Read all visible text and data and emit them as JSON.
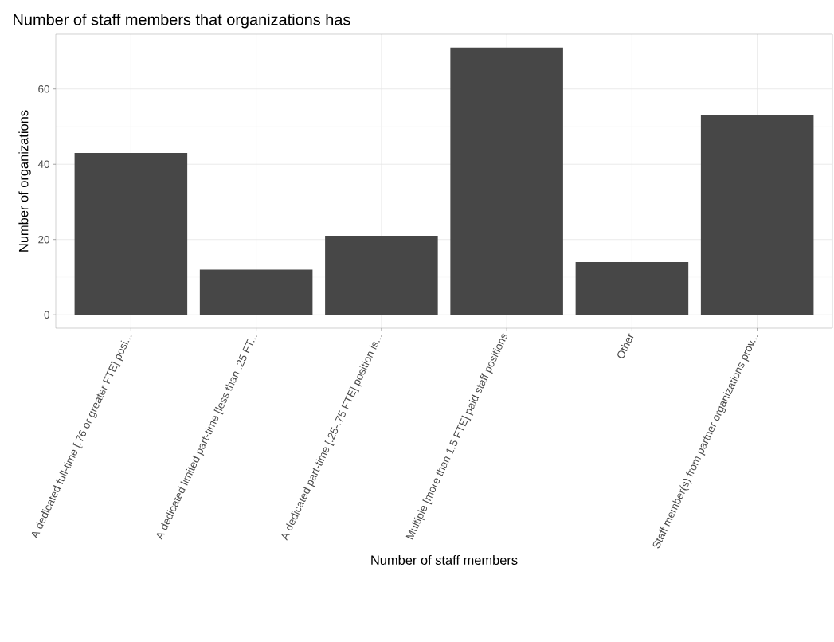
{
  "chart_data": {
    "type": "bar",
    "title": "Number of staff members that organizations has",
    "xlabel": "Number of staff members",
    "ylabel": "Number of organizations",
    "categories": [
      "A dedicated full-time [.76 or greater FTE] posi...",
      "A dedicated limited part-time [less than .25 FT...",
      "A dedicated part-time [.25-.75 FTE] position is...",
      "Multiple [more than 1.5 FTE] paid staff positions",
      "Other",
      "Staff member(s) from partner organizations prov..."
    ],
    "values": [
      43,
      12,
      21,
      71,
      14,
      53
    ],
    "color": "#474747",
    "ylim": [
      -3.55,
      74.55
    ],
    "yticks": [
      0,
      20,
      40,
      60
    ],
    "grid": true
  }
}
